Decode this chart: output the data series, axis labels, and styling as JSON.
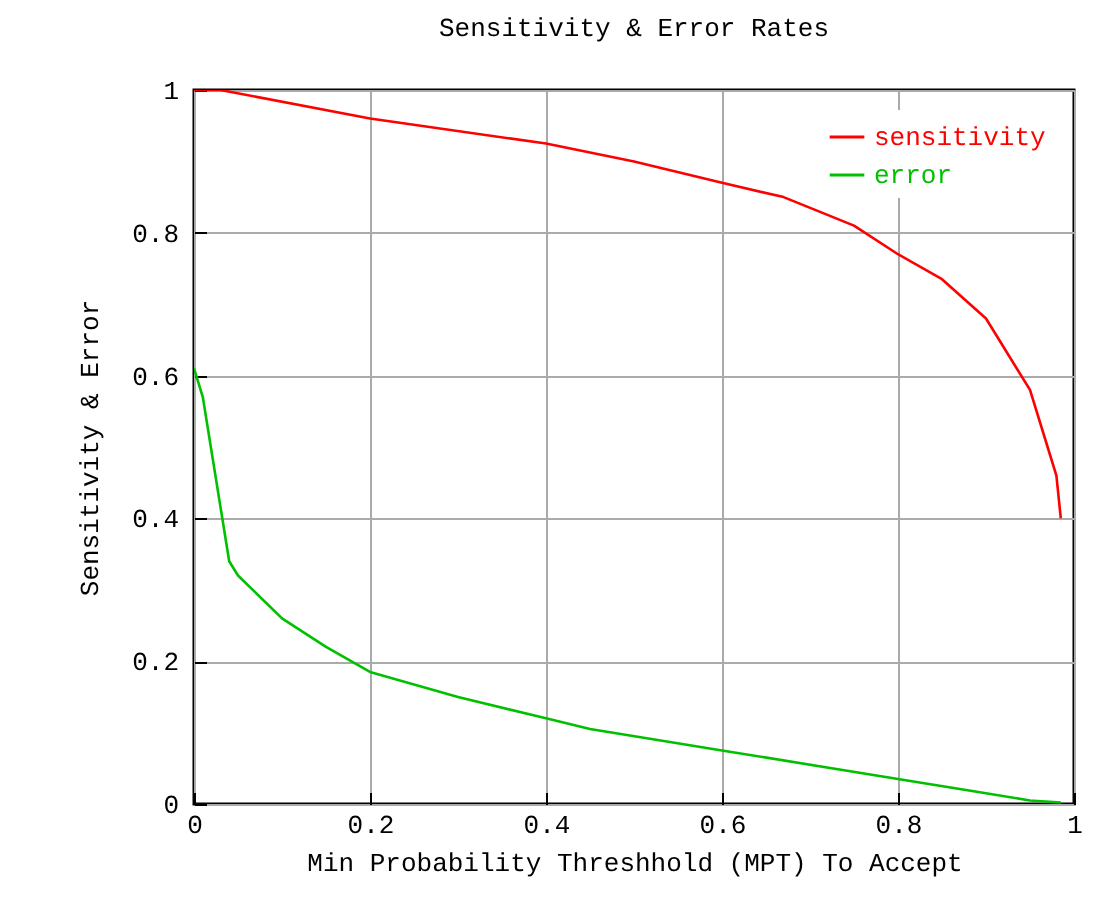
{
  "chart_data": {
    "type": "line",
    "title": "Sensitivity & Error Rates",
    "xlabel": "Min Probability Threshhold (MPT) To Accept",
    "ylabel": "Sensitivity & Error",
    "xlim": [
      0,
      1
    ],
    "ylim": [
      0,
      1
    ],
    "xticks": [
      0,
      0.2,
      0.4,
      0.6,
      0.8,
      1
    ],
    "yticks": [
      0,
      0.2,
      0.4,
      0.6,
      0.8,
      1
    ],
    "grid": true,
    "legend": "top right",
    "line_style": "solid",
    "series": [
      {
        "name": "sensitivity",
        "color": "#ff0000",
        "x": [
          0,
          0.03,
          0.2,
          0.4,
          0.5,
          0.6,
          0.67,
          0.75,
          0.8,
          0.85,
          0.9,
          0.95,
          0.97,
          0.98,
          0.985
        ],
        "values": [
          1,
          1,
          0.96,
          0.925,
          0.9,
          0.87,
          0.85,
          0.81,
          0.77,
          0.735,
          0.68,
          0.58,
          0.5,
          0.46,
          0.4
        ]
      },
      {
        "name": "error",
        "color": "#00c000",
        "x": [
          0,
          0.01,
          0.04,
          0.05,
          0.1,
          0.15,
          0.2,
          0.3,
          0.4,
          0.45,
          0.6,
          0.8,
          0.9,
          0.95,
          0.985
        ],
        "values": [
          0.61,
          0.57,
          0.34,
          0.32,
          0.26,
          0.22,
          0.185,
          0.15,
          0.12,
          0.105,
          0.075,
          0.035,
          0.015,
          0.005,
          0.002
        ]
      }
    ]
  }
}
